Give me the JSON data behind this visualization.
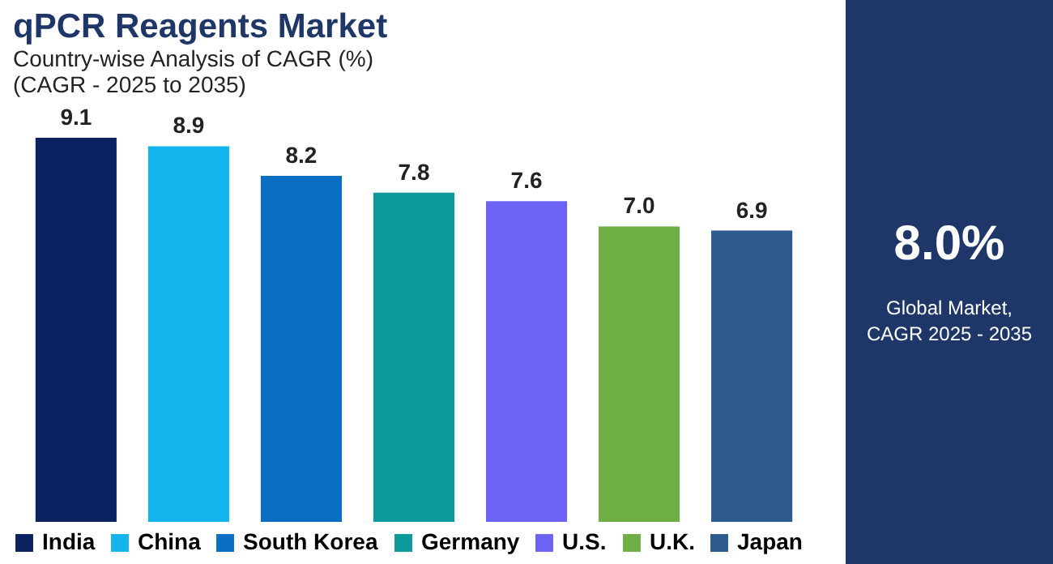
{
  "chart_data": [
    {
      "type": "bar",
      "title": "qPCR Reagents Market",
      "subtitle": "Country-wise Analysis of CAGR (%)\n(CAGR - 2025 to 2035)",
      "categories": [
        "India",
        "China",
        "South Korea",
        "Germany",
        "U.S.",
        "U.K.",
        "Japan"
      ],
      "values": [
        9.1,
        8.9,
        8.2,
        7.8,
        7.6,
        7.0,
        6.9
      ],
      "value_labels": [
        "9.1",
        "8.9",
        "8.2",
        "7.8",
        "7.6",
        "7.0",
        "6.9"
      ],
      "colors": [
        "#0b2260",
        "#14b4ec",
        "#0a6fc2",
        "#0e9a9a",
        "#6b63f5",
        "#6fae45",
        "#2d5a8c"
      ],
      "data_labels": true
    },
    {
      "type": "other",
      "annotations": [
        "8.0%",
        "Global Market,\nCAGR 2025 - 2035"
      ]
    }
  ]
}
